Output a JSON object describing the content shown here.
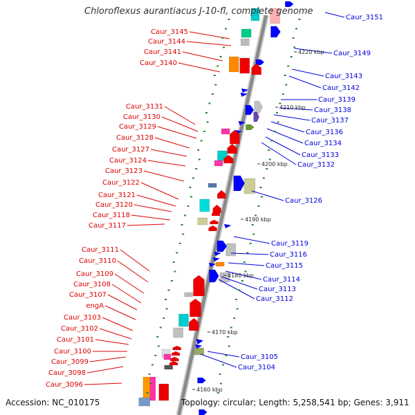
{
  "title": "Chloroflexus aurantiacus J-10-fl, complete genome",
  "accession": "Accession: NC_010175",
  "summary": "Topology: circular; Length: 5,258,541 bp; Genes: 3,911",
  "colors": {
    "left_label": "#dd0000",
    "right_label": "#0000dd",
    "backbone": "#8a8a8a",
    "tick": "#228822"
  },
  "ruler": [
    {
      "label": "4220 kbp",
      "bp": 4220000
    },
    {
      "label": "4210 kbp",
      "bp": 4210000
    },
    {
      "label": "4200 kbp",
      "bp": 4200000
    },
    {
      "label": "4190 kbp",
      "bp": 4190000
    },
    {
      "label": "4180 kbp",
      "bp": 4180000
    },
    {
      "label": "4170 kbp",
      "bp": 4170000
    },
    {
      "label": "4160 kbp",
      "bp": 4160000
    }
  ],
  "left_labels": [
    "Caur_3145",
    "Caur_3144",
    "Caur_3141",
    "Caur_3140",
    "Caur_3131",
    "Caur_3130",
    "Caur_3129",
    "Caur_3128",
    "Caur_3127",
    "Caur_3124",
    "Caur_3123",
    "Caur_3122",
    "Caur_3121",
    "Caur_3120",
    "Caur_3118",
    "Caur_3117",
    "Caur_3111",
    "Caur_3110",
    "Caur_3109",
    "Caur_3108",
    "Caur_3107",
    "engA",
    "Caur_3103",
    "Caur_3102",
    "Caur_3101",
    "Caur_3100",
    "Caur_3099",
    "Caur_3098",
    "Caur_3096"
  ],
  "right_labels": [
    "Caur_3151",
    "Caur_3149",
    "Caur_3143",
    "Caur_3142",
    "Caur_3139",
    "Caur_3138",
    "Caur_3137",
    "Caur_3136",
    "Caur_3134",
    "Caur_3133",
    "Caur_3132",
    "Caur_3126",
    "Caur_3119",
    "Caur_3116",
    "Caur_3115",
    "Caur_3114",
    "Caur_3113",
    "Caur_3112",
    "Caur_3105",
    "Caur_3104"
  ]
}
